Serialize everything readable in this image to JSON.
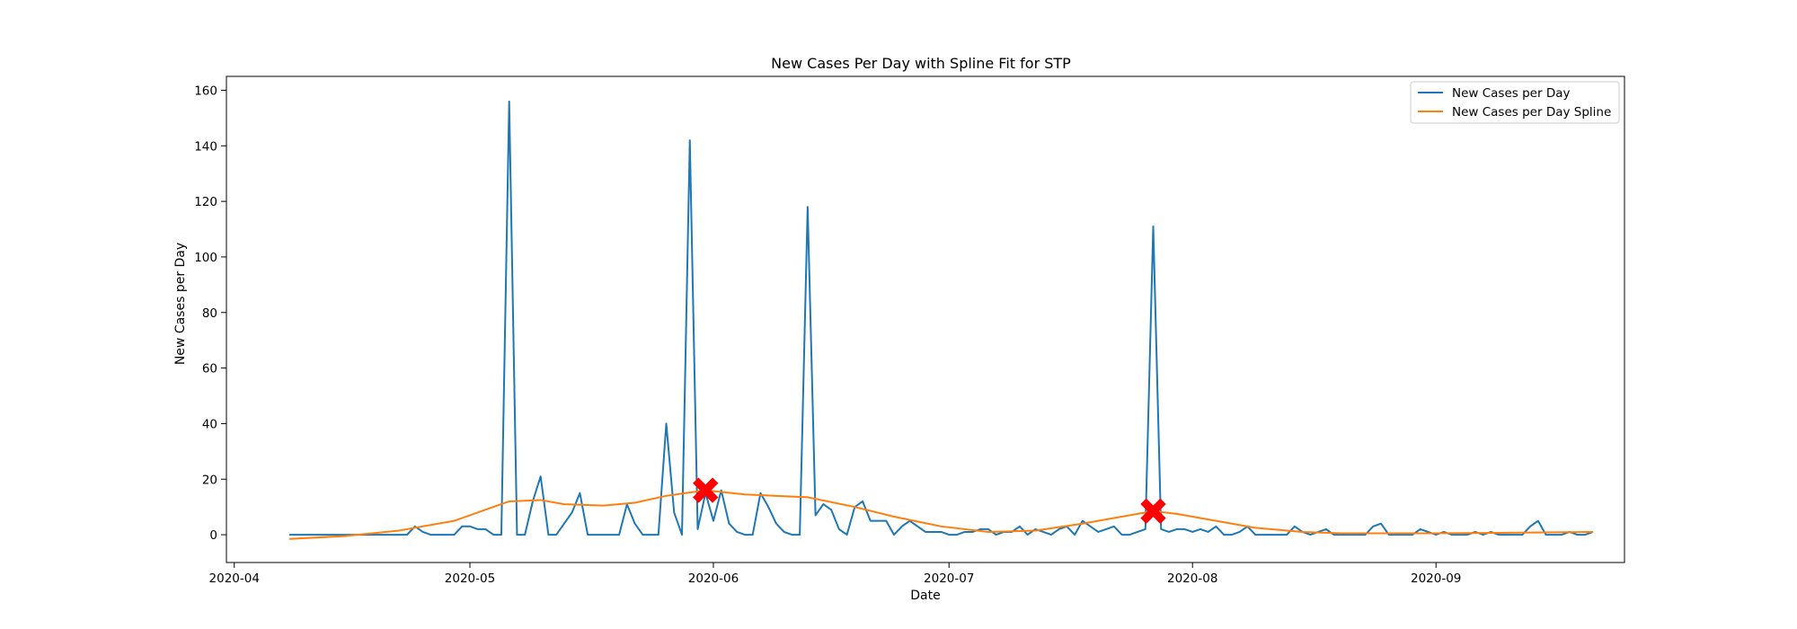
{
  "chart_data": {
    "type": "line",
    "title": "New Cases Per Day with Spline Fit for STP",
    "xlabel": "Date",
    "ylabel": "New Cases per Day",
    "x_range": [
      "2020-03-31",
      "2020-09-25"
    ],
    "ylim": [
      -10,
      165
    ],
    "x_ticks": [
      "2020-04",
      "2020-05",
      "2020-06",
      "2020-07",
      "2020-08",
      "2020-09"
    ],
    "y_ticks": [
      0,
      20,
      40,
      60,
      80,
      100,
      120,
      140,
      160
    ],
    "grid": false,
    "legend_position": "top-right",
    "series": [
      {
        "name": "New Cases per Day",
        "color": "#1f77b4",
        "points": [
          [
            "2020-04-08",
            0
          ],
          [
            "2020-04-20",
            0
          ],
          [
            "2020-04-21",
            0
          ],
          [
            "2020-04-22",
            0
          ],
          [
            "2020-04-23",
            0
          ],
          [
            "2020-04-24",
            3
          ],
          [
            "2020-04-25",
            1
          ],
          [
            "2020-04-26",
            0
          ],
          [
            "2020-04-27",
            0
          ],
          [
            "2020-04-28",
            0
          ],
          [
            "2020-04-29",
            0
          ],
          [
            "2020-04-30",
            3
          ],
          [
            "2020-05-01",
            3
          ],
          [
            "2020-05-02",
            2
          ],
          [
            "2020-05-03",
            2
          ],
          [
            "2020-05-04",
            0
          ],
          [
            "2020-05-05",
            0
          ],
          [
            "2020-05-06",
            156
          ],
          [
            "2020-05-07",
            0
          ],
          [
            "2020-05-08",
            0
          ],
          [
            "2020-05-09",
            12
          ],
          [
            "2020-05-10",
            21
          ],
          [
            "2020-05-11",
            0
          ],
          [
            "2020-05-12",
            0
          ],
          [
            "2020-05-13",
            4
          ],
          [
            "2020-05-14",
            8
          ],
          [
            "2020-05-15",
            15
          ],
          [
            "2020-05-16",
            0
          ],
          [
            "2020-05-17",
            0
          ],
          [
            "2020-05-18",
            0
          ],
          [
            "2020-05-19",
            0
          ],
          [
            "2020-05-20",
            0
          ],
          [
            "2020-05-21",
            11
          ],
          [
            "2020-05-22",
            4
          ],
          [
            "2020-05-23",
            0
          ],
          [
            "2020-05-24",
            0
          ],
          [
            "2020-05-25",
            0
          ],
          [
            "2020-05-26",
            40
          ],
          [
            "2020-05-27",
            8
          ],
          [
            "2020-05-28",
            0
          ],
          [
            "2020-05-29",
            142
          ],
          [
            "2020-05-30",
            2
          ],
          [
            "2020-05-31",
            15
          ],
          [
            "2020-06-01",
            5
          ],
          [
            "2020-06-02",
            16
          ],
          [
            "2020-06-03",
            4
          ],
          [
            "2020-06-04",
            1
          ],
          [
            "2020-06-05",
            0
          ],
          [
            "2020-06-06",
            0
          ],
          [
            "2020-06-07",
            15
          ],
          [
            "2020-06-08",
            10
          ],
          [
            "2020-06-09",
            4
          ],
          [
            "2020-06-10",
            1
          ],
          [
            "2020-06-11",
            0
          ],
          [
            "2020-06-12",
            0
          ],
          [
            "2020-06-13",
            118
          ],
          [
            "2020-06-14",
            7
          ],
          [
            "2020-06-15",
            11
          ],
          [
            "2020-06-16",
            9
          ],
          [
            "2020-06-17",
            2
          ],
          [
            "2020-06-18",
            0
          ],
          [
            "2020-06-19",
            10
          ],
          [
            "2020-06-20",
            12
          ],
          [
            "2020-06-21",
            5
          ],
          [
            "2020-06-22",
            5
          ],
          [
            "2020-06-23",
            5
          ],
          [
            "2020-06-24",
            0
          ],
          [
            "2020-06-25",
            3
          ],
          [
            "2020-06-26",
            5
          ],
          [
            "2020-06-27",
            3
          ],
          [
            "2020-06-28",
            1
          ],
          [
            "2020-06-29",
            1
          ],
          [
            "2020-06-30",
            1
          ],
          [
            "2020-07-01",
            0
          ],
          [
            "2020-07-02",
            0
          ],
          [
            "2020-07-03",
            1
          ],
          [
            "2020-07-04",
            1
          ],
          [
            "2020-07-05",
            2
          ],
          [
            "2020-07-06",
            2
          ],
          [
            "2020-07-07",
            0
          ],
          [
            "2020-07-08",
            1
          ],
          [
            "2020-07-09",
            1
          ],
          [
            "2020-07-10",
            3
          ],
          [
            "2020-07-11",
            0
          ],
          [
            "2020-07-12",
            2
          ],
          [
            "2020-07-13",
            1
          ],
          [
            "2020-07-14",
            0
          ],
          [
            "2020-07-15",
            2
          ],
          [
            "2020-07-16",
            3
          ],
          [
            "2020-07-17",
            0
          ],
          [
            "2020-07-18",
            5
          ],
          [
            "2020-07-19",
            3
          ],
          [
            "2020-07-20",
            1
          ],
          [
            "2020-07-21",
            2
          ],
          [
            "2020-07-22",
            3
          ],
          [
            "2020-07-23",
            0
          ],
          [
            "2020-07-24",
            0
          ],
          [
            "2020-07-25",
            1
          ],
          [
            "2020-07-26",
            2
          ],
          [
            "2020-07-27",
            111
          ],
          [
            "2020-07-28",
            2
          ],
          [
            "2020-07-29",
            1
          ],
          [
            "2020-07-30",
            2
          ],
          [
            "2020-07-31",
            2
          ],
          [
            "2020-08-01",
            1
          ],
          [
            "2020-08-02",
            2
          ],
          [
            "2020-08-03",
            1
          ],
          [
            "2020-08-04",
            3
          ],
          [
            "2020-08-05",
            0
          ],
          [
            "2020-08-06",
            0
          ],
          [
            "2020-08-07",
            1
          ],
          [
            "2020-08-08",
            3
          ],
          [
            "2020-08-09",
            0
          ],
          [
            "2020-08-10",
            0
          ],
          [
            "2020-08-11",
            0
          ],
          [
            "2020-08-12",
            0
          ],
          [
            "2020-08-13",
            0
          ],
          [
            "2020-08-14",
            3
          ],
          [
            "2020-08-15",
            1
          ],
          [
            "2020-08-16",
            0
          ],
          [
            "2020-08-17",
            1
          ],
          [
            "2020-08-18",
            2
          ],
          [
            "2020-08-19",
            0
          ],
          [
            "2020-08-20",
            0
          ],
          [
            "2020-08-21",
            0
          ],
          [
            "2020-08-22",
            0
          ],
          [
            "2020-08-23",
            0
          ],
          [
            "2020-08-24",
            3
          ],
          [
            "2020-08-25",
            4
          ],
          [
            "2020-08-26",
            0
          ],
          [
            "2020-08-27",
            0
          ],
          [
            "2020-08-28",
            0
          ],
          [
            "2020-08-29",
            0
          ],
          [
            "2020-08-30",
            2
          ],
          [
            "2020-08-31",
            1
          ],
          [
            "2020-09-01",
            0
          ],
          [
            "2020-09-02",
            1
          ],
          [
            "2020-09-03",
            0
          ],
          [
            "2020-09-04",
            0
          ],
          [
            "2020-09-05",
            0
          ],
          [
            "2020-09-06",
            1
          ],
          [
            "2020-09-07",
            0
          ],
          [
            "2020-09-08",
            1
          ],
          [
            "2020-09-09",
            0
          ],
          [
            "2020-09-10",
            0
          ],
          [
            "2020-09-11",
            0
          ],
          [
            "2020-09-12",
            0
          ],
          [
            "2020-09-13",
            3
          ],
          [
            "2020-09-14",
            5
          ],
          [
            "2020-09-15",
            0
          ],
          [
            "2020-09-16",
            0
          ],
          [
            "2020-09-17",
            0
          ],
          [
            "2020-09-18",
            1
          ],
          [
            "2020-09-19",
            0
          ],
          [
            "2020-09-20",
            0
          ],
          [
            "2020-09-21",
            1
          ]
        ]
      },
      {
        "name": "New Cases per Day Spline",
        "color": "#ff7f0e",
        "points": [
          [
            "2020-04-08",
            -1.5
          ],
          [
            "2020-04-15",
            -0.5
          ],
          [
            "2020-04-22",
            1.5
          ],
          [
            "2020-04-29",
            5
          ],
          [
            "2020-05-02",
            8
          ],
          [
            "2020-05-06",
            12
          ],
          [
            "2020-05-10",
            12.5
          ],
          [
            "2020-05-13",
            11
          ],
          [
            "2020-05-18",
            10.5
          ],
          [
            "2020-05-22",
            11.5
          ],
          [
            "2020-05-26",
            14
          ],
          [
            "2020-05-31",
            16
          ],
          [
            "2020-06-05",
            14.5
          ],
          [
            "2020-06-13",
            13.5
          ],
          [
            "2020-06-19",
            10
          ],
          [
            "2020-06-24",
            6.5
          ],
          [
            "2020-06-30",
            3
          ],
          [
            "2020-07-06",
            1
          ],
          [
            "2020-07-12",
            1.5
          ],
          [
            "2020-07-18",
            4
          ],
          [
            "2020-07-22",
            6
          ],
          [
            "2020-07-27",
            8.5
          ],
          [
            "2020-07-30",
            7.5
          ],
          [
            "2020-08-04",
            5
          ],
          [
            "2020-08-09",
            2.5
          ],
          [
            "2020-08-15",
            1
          ],
          [
            "2020-08-20",
            0.5
          ],
          [
            "2020-08-31",
            0.5
          ],
          [
            "2020-09-10",
            0.7
          ],
          [
            "2020-09-21",
            1
          ]
        ]
      }
    ],
    "markers": [
      {
        "x": "2020-05-31",
        "y": 16,
        "shape": "X",
        "color": "#ff0000"
      },
      {
        "x": "2020-07-27",
        "y": 8.5,
        "shape": "X",
        "color": "#ff0000"
      }
    ]
  }
}
